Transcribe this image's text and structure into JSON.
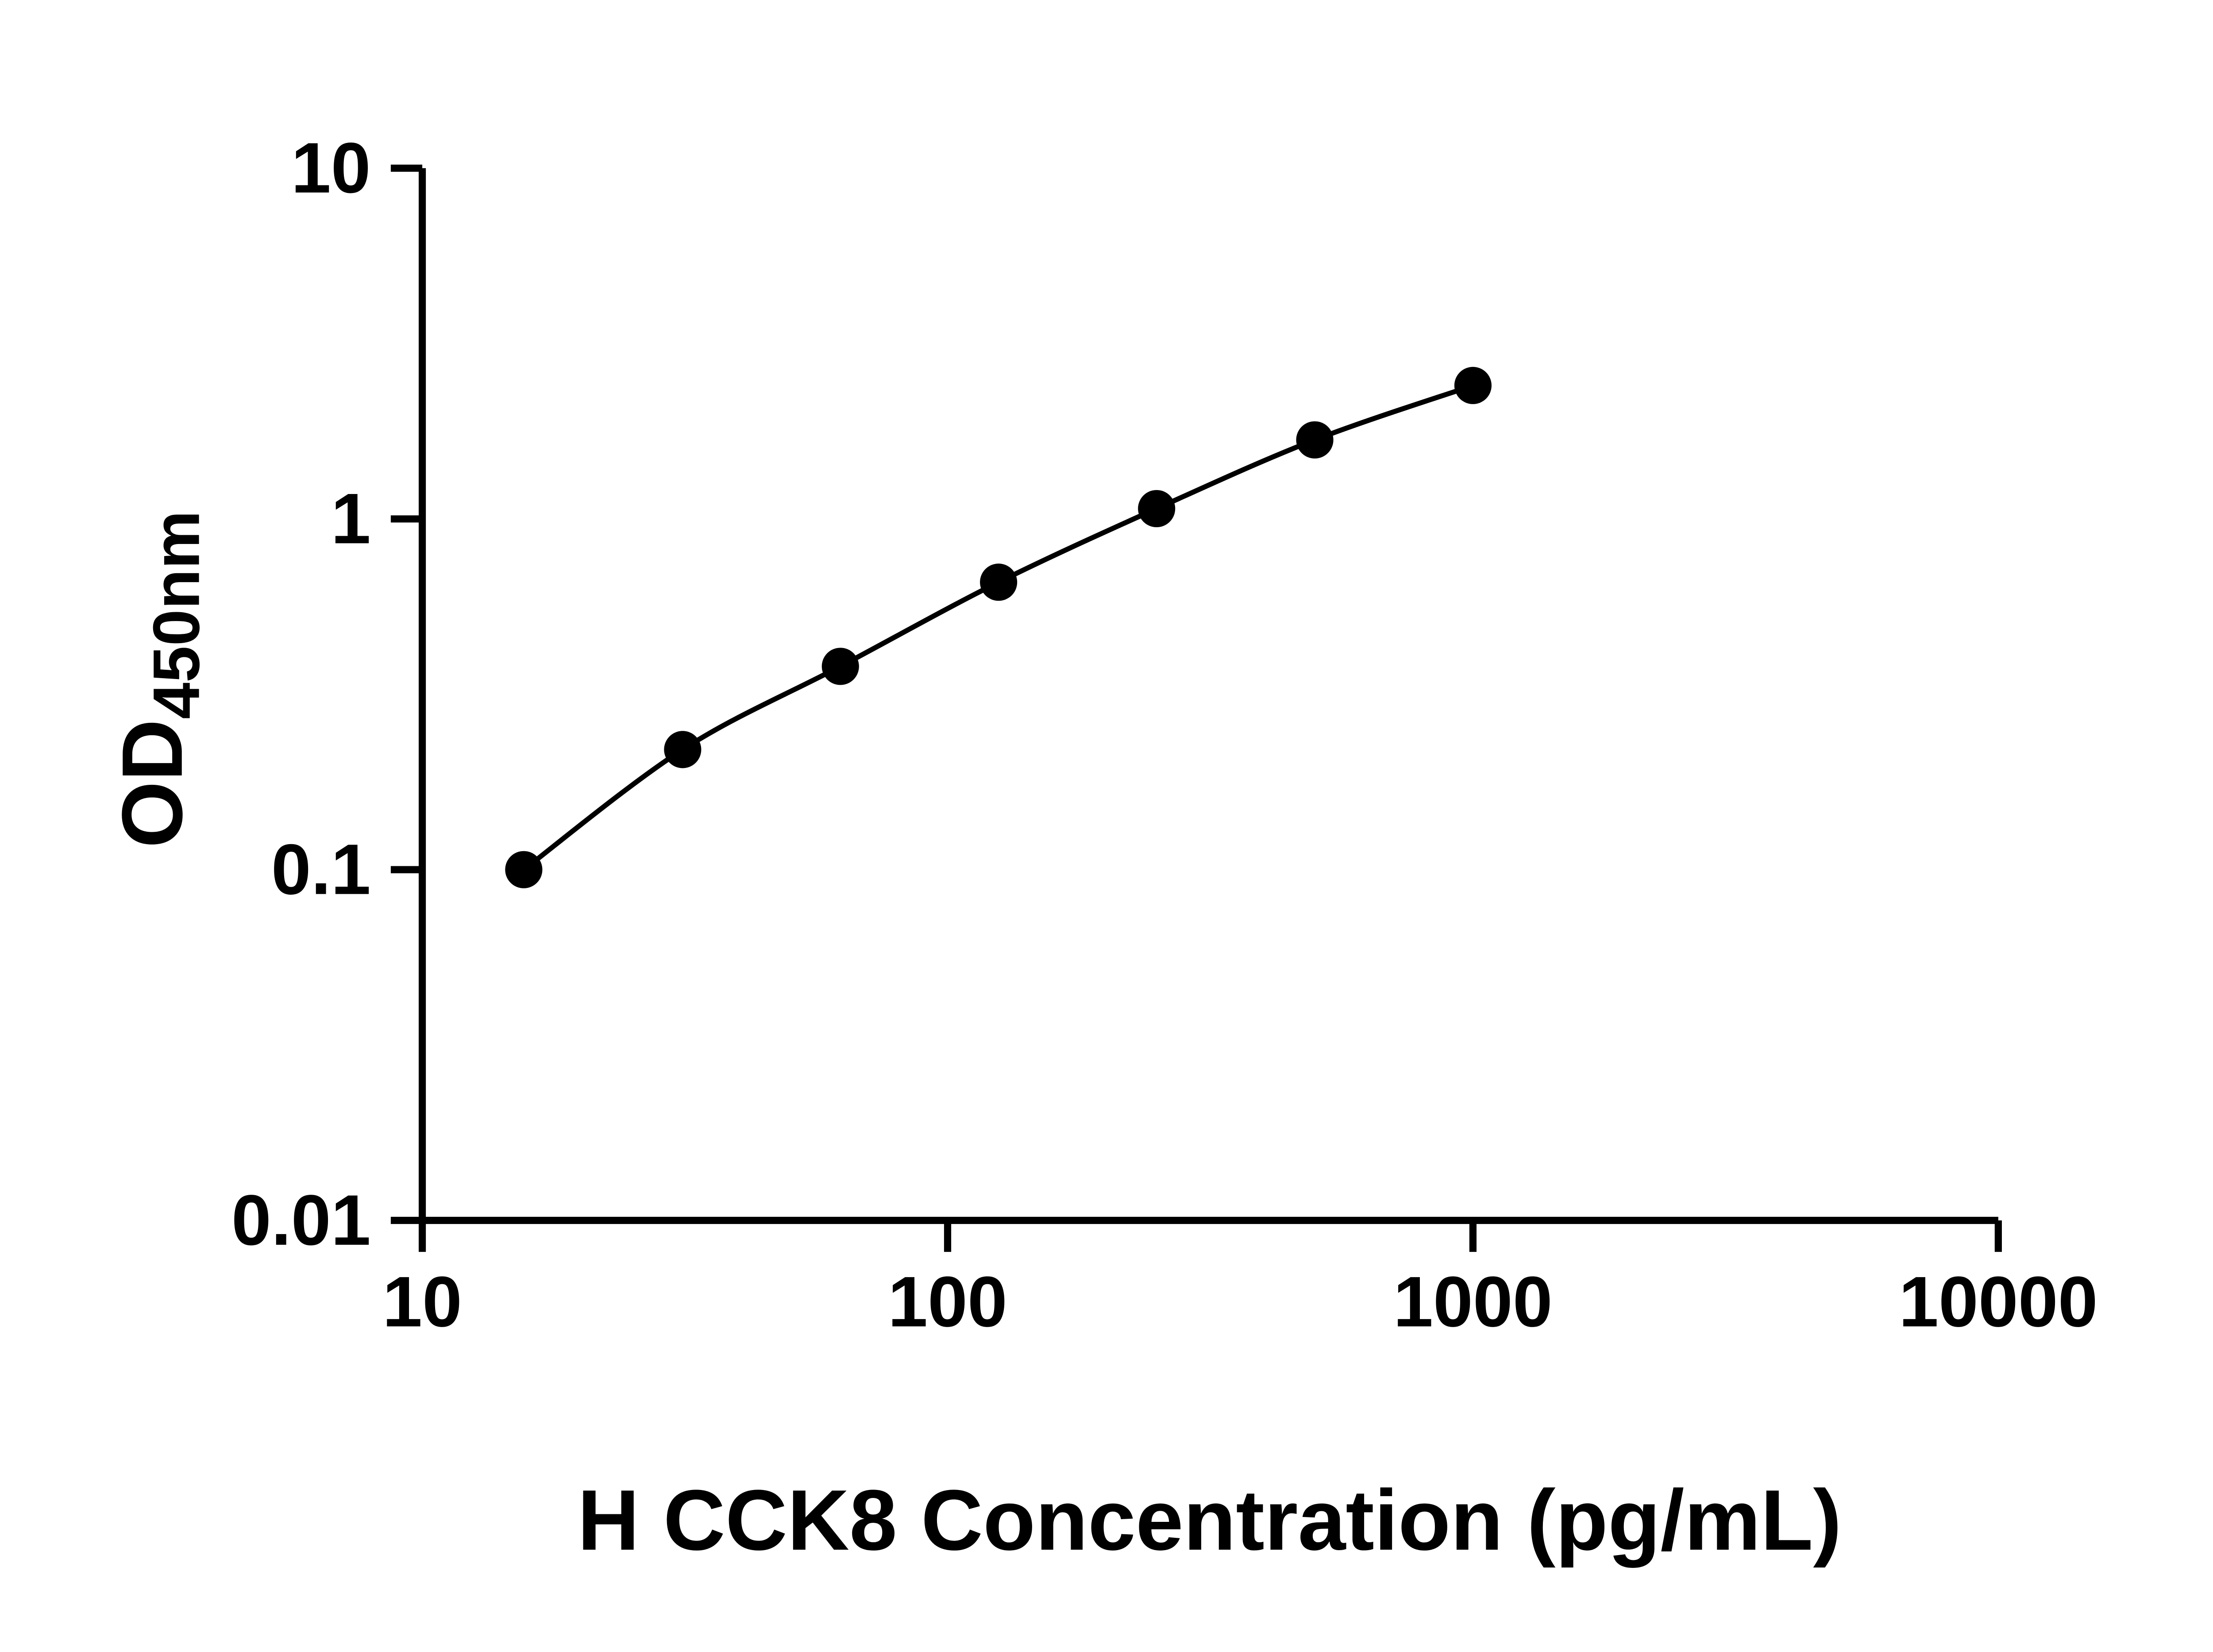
{
  "figure": {
    "description": "ELISA standard curve, log-log scatter with smooth fit line",
    "background": "#ffffff"
  },
  "style": {
    "background": "#ffffff",
    "axis_color": "#000000",
    "text_color": "#000000",
    "marker_color": "#000000",
    "line_color": "#000000"
  },
  "chart_data": {
    "type": "line",
    "title": "",
    "xlabel": "H CCK8 Concentration (pg/mL)",
    "ylabel": "OD",
    "ylabel_subscript": "450nm",
    "xscale": "log",
    "yscale": "log",
    "xlim": [
      10,
      10000
    ],
    "ylim": [
      0.01,
      10
    ],
    "grid": false,
    "legend": false,
    "xticks": {
      "values": [
        10,
        100,
        1000,
        10000
      ],
      "labels": [
        "10",
        "100",
        "1000",
        "10000"
      ]
    },
    "yticks": {
      "values": [
        0.01,
        0.1,
        1,
        10
      ],
      "labels": [
        "0.01",
        "0.1",
        "1",
        "10"
      ]
    },
    "series": [
      {
        "x": [
          15.6,
          31.3,
          62.5,
          125,
          250,
          500,
          1000
        ],
        "y": [
          0.1,
          0.22,
          0.38,
          0.66,
          1.07,
          1.68,
          2.4
        ],
        "marker": "filled-circle",
        "marker_color": "#000000",
        "line_color": "#000000",
        "curve": "smooth"
      }
    ]
  }
}
